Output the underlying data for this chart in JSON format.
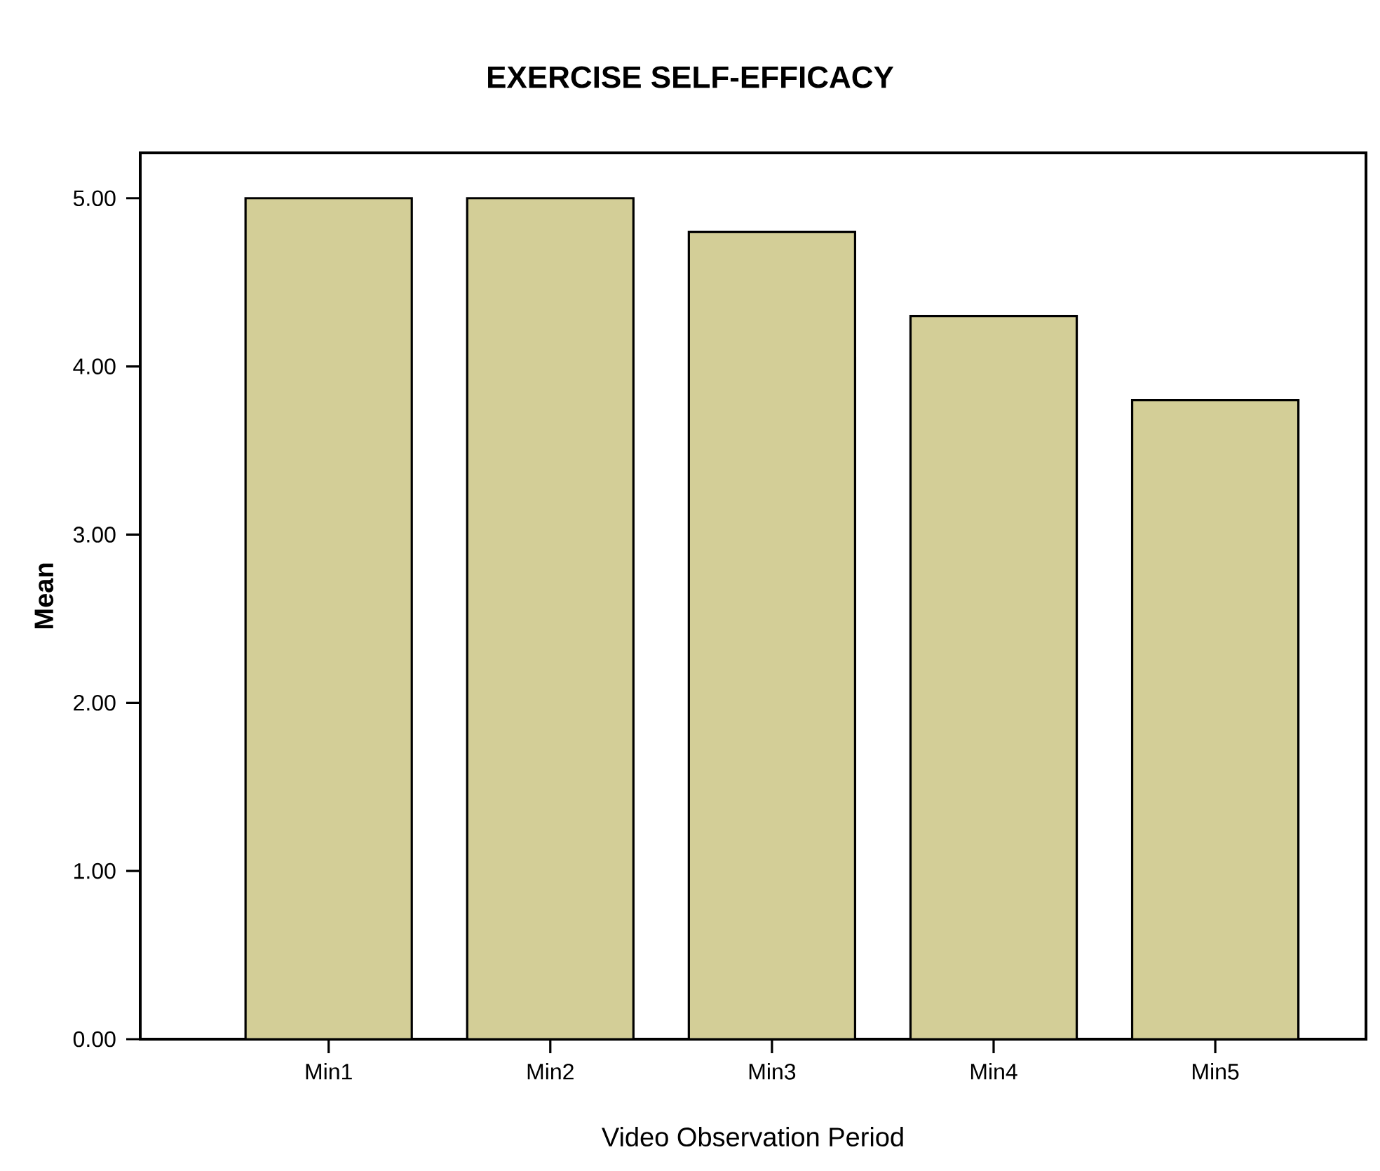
{
  "chart_data": {
    "type": "bar",
    "title": "EXERCISE SELF-EFFICACY",
    "xlabel": "Video Observation Period",
    "ylabel": "Mean",
    "categories": [
      "Min1",
      "Min2",
      "Min3",
      "Min4",
      "Min5"
    ],
    "values": [
      5.0,
      5.0,
      4.8,
      4.3,
      3.8
    ],
    "color": "#d3ce97",
    "ylim": [
      0,
      5.27
    ],
    "yticks": [
      {
        "value": 0,
        "label": "0.00"
      },
      {
        "value": 1,
        "label": "1.00"
      },
      {
        "value": 2,
        "label": "2.00"
      },
      {
        "value": 3,
        "label": "3.00"
      },
      {
        "value": 4,
        "label": "4.00"
      },
      {
        "value": 5,
        "label": "5.00"
      }
    ],
    "grid": false
  }
}
